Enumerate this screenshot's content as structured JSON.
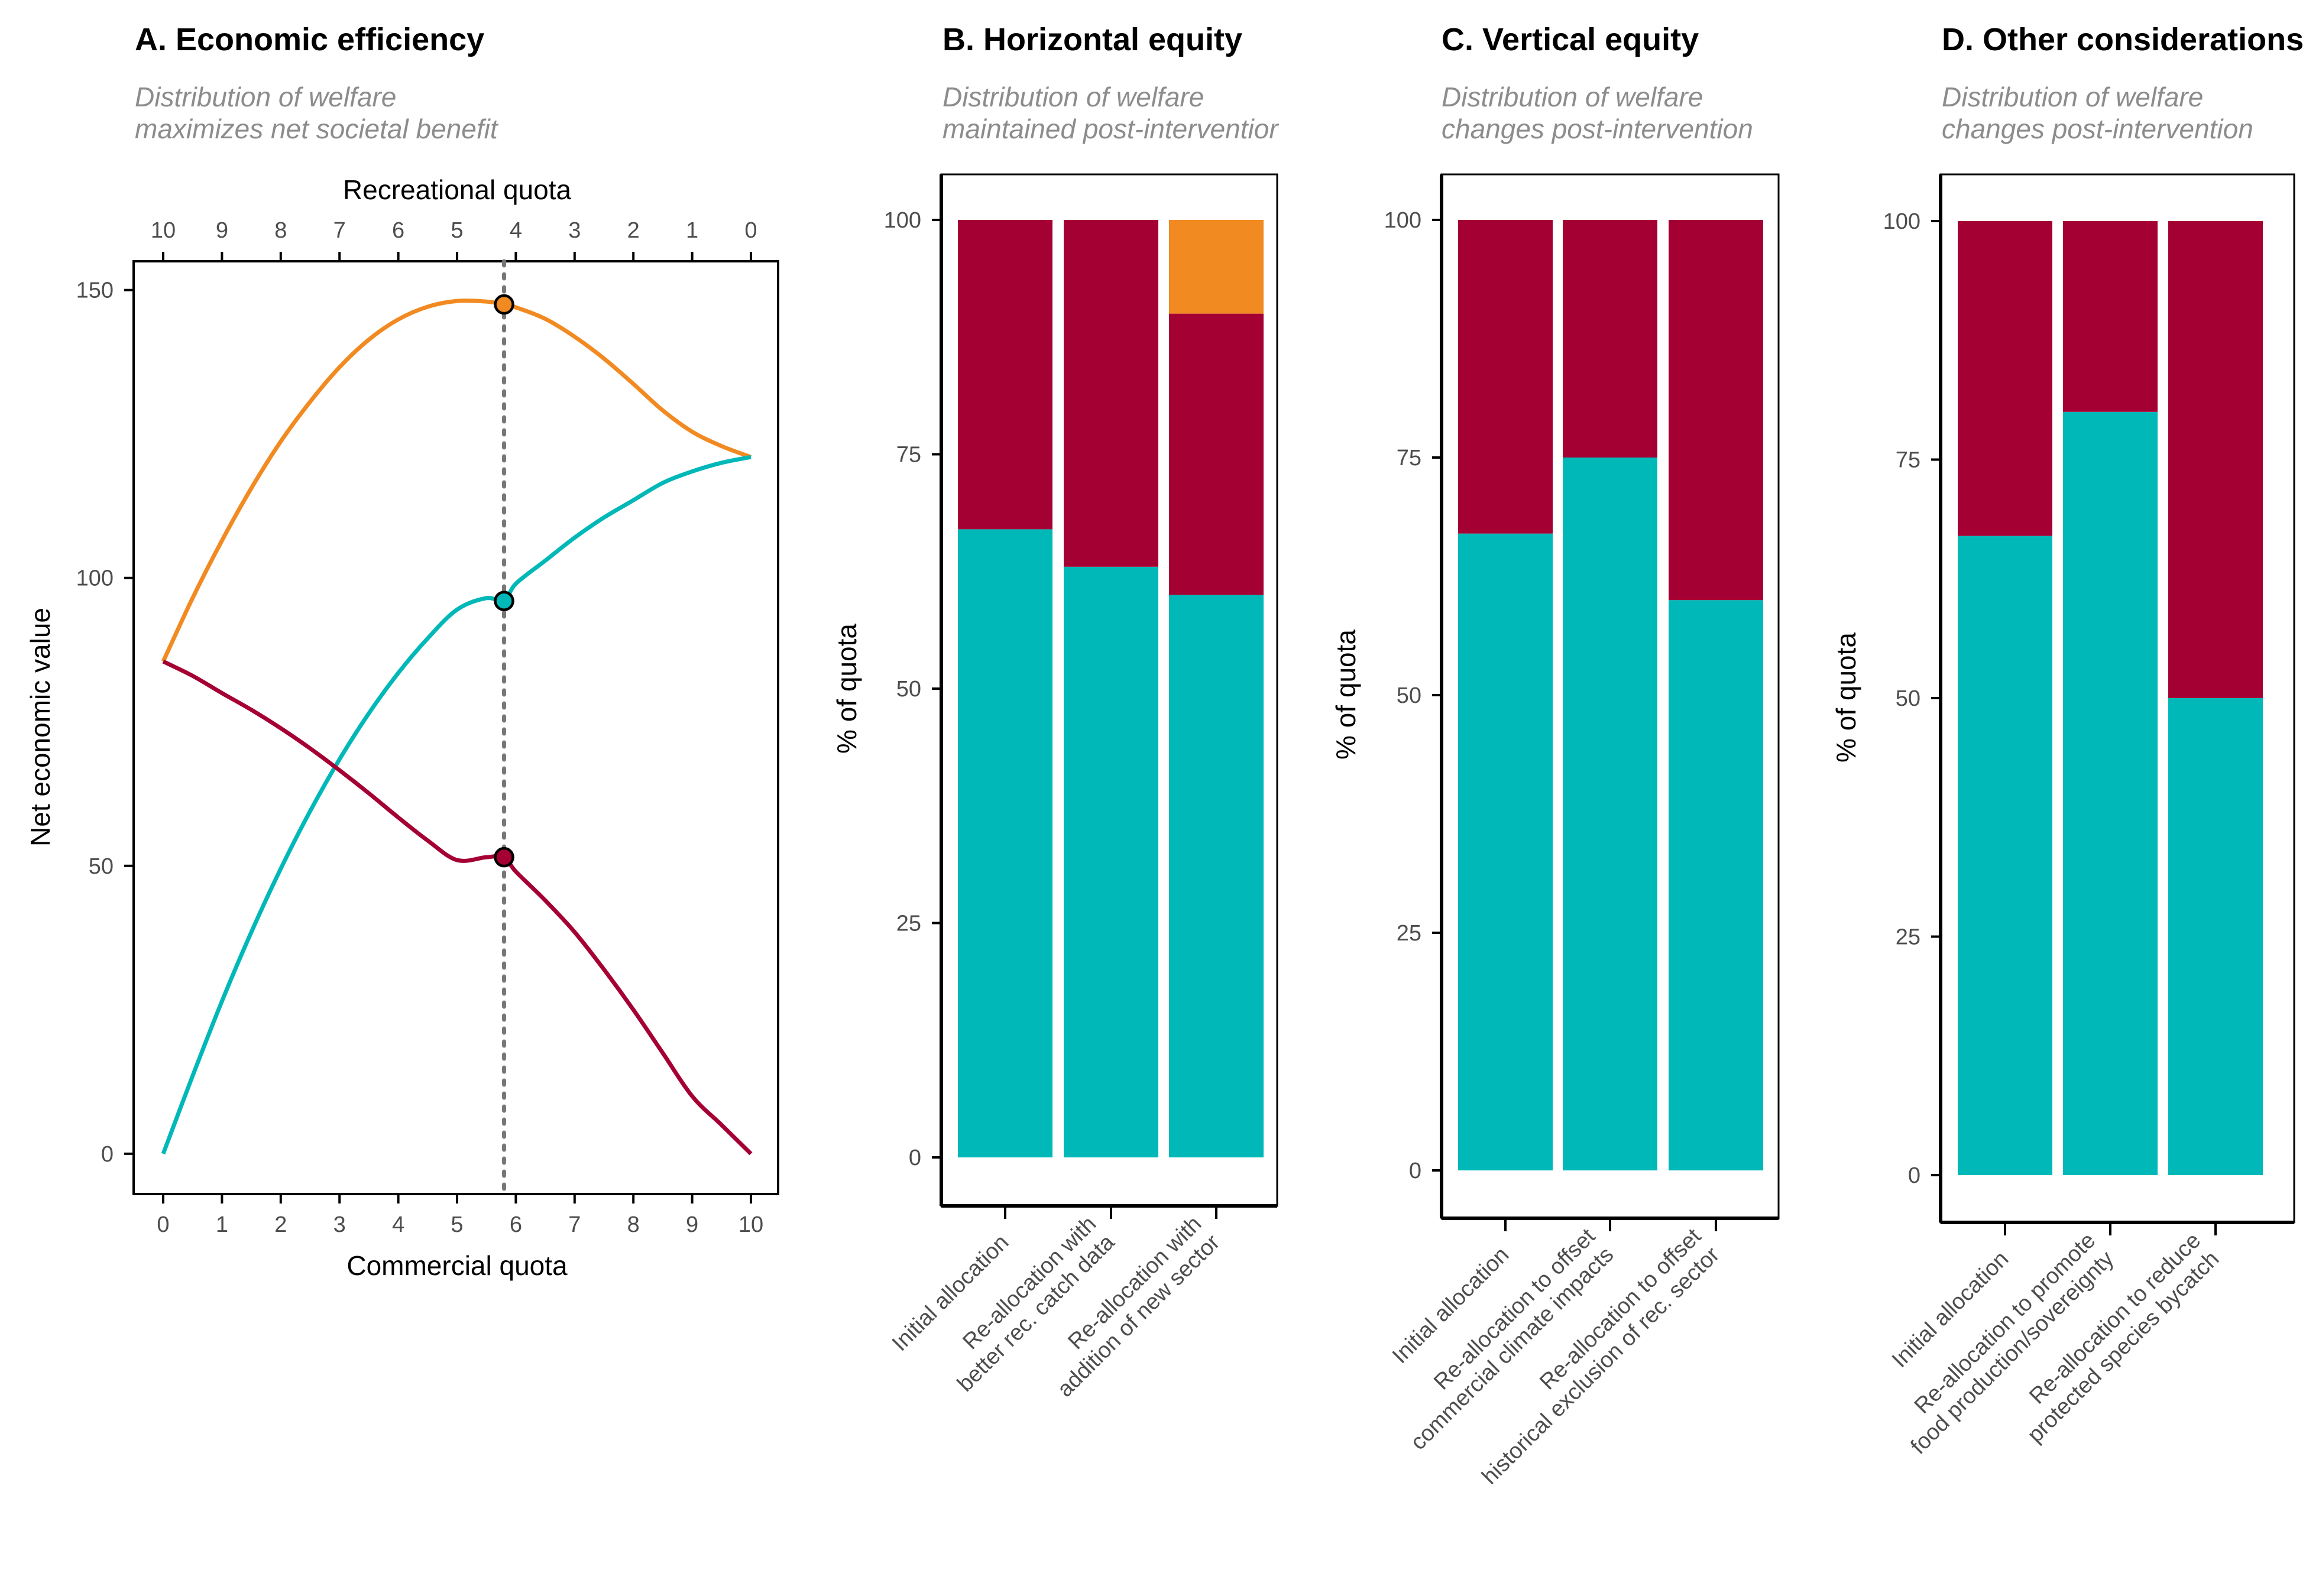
{
  "colors": {
    "commercial": "#a50034",
    "recreational": "#00b8b8",
    "total": "#f28a22",
    "extra": "#f28a22",
    "guide": "#777777",
    "axis": "#000000"
  },
  "chart_data": [
    {
      "type": "line",
      "title": "A. Economic efficiency",
      "subtitle": [
        "Distribution of welfare",
        "maximizes net societal benefit"
      ],
      "xlabel": "Commercial quota",
      "x2label": "Recreational quota",
      "ylabel": "Net economic value",
      "xlim": [
        0,
        10
      ],
      "ylim": [
        -7,
        155
      ],
      "xticks": [
        "0",
        "1",
        "2",
        "3",
        "4",
        "5",
        "6",
        "7",
        "8",
        "9",
        "10"
      ],
      "x2ticks": [
        "10",
        "9",
        "8",
        "7",
        "6",
        "5",
        "4",
        "3",
        "2",
        "1",
        "0"
      ],
      "yticks": [
        "0",
        "50",
        "100",
        "150"
      ],
      "optimum_x": 5.8,
      "series": [
        {
          "key": "total",
          "x": [
            0,
            0.5,
            1,
            1.5,
            2,
            2.5,
            3,
            3.5,
            4,
            4.5,
            5,
            5.5,
            5.8,
            6,
            6.5,
            7,
            7.5,
            8,
            8.5,
            9,
            9.5,
            10
          ],
          "y": [
            85.5,
            96.5,
            106.5,
            115.6,
            123.7,
            130.6,
            136.6,
            141.4,
            144.9,
            147.1,
            148.1,
            148.0,
            147.5,
            147.0,
            145.0,
            141.9,
            138.1,
            133.7,
            129.1,
            125.4,
            122.9,
            121.0
          ],
          "marker": 147.5
        },
        {
          "key": "recreational",
          "x": [
            0,
            0.5,
            1,
            1.5,
            2,
            2.5,
            3,
            3.5,
            4,
            4.5,
            5,
            5.5,
            5.8,
            6,
            6.5,
            7,
            7.5,
            8,
            8.5,
            9,
            9.5,
            10
          ],
          "y": [
            0,
            13.5,
            26.5,
            38.5,
            49.5,
            59.5,
            68.5,
            76.5,
            83.5,
            89.5,
            94.5,
            96.5,
            96.0,
            99.0,
            103.0,
            107.0,
            110.5,
            113.5,
            116.5,
            118.5,
            120.0,
            121.0
          ],
          "marker": 96.0
        },
        {
          "key": "commercial",
          "x": [
            0,
            0.5,
            1,
            1.5,
            2,
            2.5,
            3,
            3.5,
            4,
            4.5,
            5,
            5.5,
            5.8,
            6,
            6.5,
            7,
            7.5,
            8,
            8.5,
            9,
            9.5,
            10
          ],
          "y": [
            85.5,
            83.0,
            80.0,
            77.1,
            73.9,
            70.4,
            66.6,
            62.6,
            58.4,
            54.4,
            51.0,
            51.5,
            51.5,
            49.0,
            44.0,
            38.5,
            32.0,
            25.0,
            17.5,
            10.0,
            5.0,
            0
          ],
          "marker": 51.5
        }
      ]
    },
    {
      "type": "bar",
      "stacked": true,
      "title": "B. Horizontal equity",
      "subtitle": [
        "Distribution of welfare",
        "maintained post-interventior"
      ],
      "ylabel": "% of quota",
      "ylim": [
        0,
        105
      ],
      "yticks": [
        "0",
        "25",
        "50",
        "75",
        "100"
      ],
      "categories": [
        [
          "Initial allocation"
        ],
        [
          "Re-allocation with",
          "better rec. catch data"
        ],
        [
          "Re-allocation with",
          "addition of new sector"
        ]
      ],
      "series": [
        {
          "key": "recreational",
          "values": [
            67,
            63,
            60
          ]
        },
        {
          "key": "commercial",
          "values": [
            33,
            37,
            30
          ]
        },
        {
          "key": "extra",
          "values": [
            0,
            0,
            10
          ]
        }
      ]
    },
    {
      "type": "bar",
      "stacked": true,
      "title": "C. Vertical equity",
      "subtitle": [
        "Distribution of welfare",
        "changes post-intervention"
      ],
      "ylabel": "% of quota",
      "ylim": [
        0,
        105
      ],
      "yticks": [
        "0",
        "25",
        "50",
        "75",
        "100"
      ],
      "categories": [
        [
          "Initial allocation"
        ],
        [
          "Re-allocation to offset",
          "commercial climate impacts"
        ],
        [
          "Re-allocation to offset",
          "historical exclusion of rec. sector"
        ]
      ],
      "series": [
        {
          "key": "recreational",
          "values": [
            67,
            75,
            60
          ]
        },
        {
          "key": "commercial",
          "values": [
            33,
            25,
            40
          ]
        }
      ]
    },
    {
      "type": "bar",
      "stacked": true,
      "title": "D. Other considerations",
      "subtitle": [
        "Distribution of welfare",
        "changes post-intervention"
      ],
      "ylabel": "% of quota",
      "ylim": [
        0,
        105
      ],
      "yticks": [
        "0",
        "25",
        "50",
        "75",
        "100"
      ],
      "categories": [
        [
          "Initial allocation"
        ],
        [
          "Re-allocation to promote",
          "food production/sovereignty"
        ],
        [
          "Re-allocation to reduce",
          "protected species bycatch"
        ]
      ],
      "series": [
        {
          "key": "recreational",
          "values": [
            67,
            80,
            50
          ]
        },
        {
          "key": "commercial",
          "values": [
            33,
            20,
            50
          ]
        }
      ]
    }
  ]
}
